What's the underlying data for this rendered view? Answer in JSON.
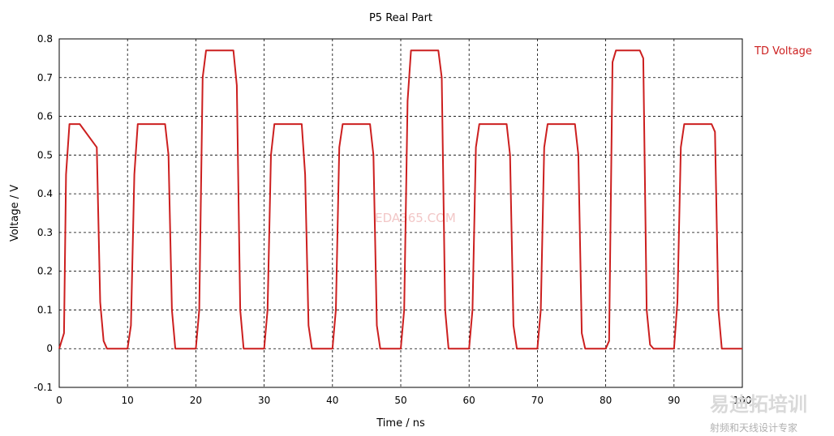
{
  "chart_data": {
    "type": "line",
    "title": "P5 Real Part",
    "xlabel": "Time / ns",
    "ylabel": "Voltage / V",
    "xlim": [
      0,
      100
    ],
    "ylim": [
      -0.1,
      0.8
    ],
    "x_ticks": [
      0,
      10,
      20,
      30,
      40,
      50,
      60,
      70,
      80,
      90,
      100
    ],
    "y_ticks": [
      -0.1,
      0,
      0.1,
      0.2,
      0.3,
      0.4,
      0.5,
      0.6,
      0.7,
      0.8
    ],
    "x_tick_labels": [
      "0",
      "10",
      "20",
      "30",
      "40",
      "50",
      "60",
      "70",
      "80",
      "90",
      "100"
    ],
    "y_tick_labels": [
      "-0.1",
      "0",
      "0.1",
      "0.2",
      "0.3",
      "0.4",
      "0.5",
      "0.6",
      "0.7",
      "0.8"
    ],
    "grid": true,
    "legend_position": "top-right",
    "series": [
      {
        "name": "TD Voltage",
        "color": "#cc1f1f",
        "x": [
          0,
          0.7,
          1.0,
          1.5,
          3.0,
          5.5,
          6.0,
          6.5,
          7.0,
          10.0,
          10.5,
          11.0,
          11.5,
          15.5,
          16.0,
          16.5,
          17.0,
          20.0,
          20.5,
          21.0,
          21.5,
          25.5,
          26.0,
          26.5,
          27.0,
          30.0,
          30.5,
          31.0,
          31.5,
          35.5,
          36.0,
          36.5,
          37.0,
          40.0,
          40.5,
          41.0,
          41.5,
          45.5,
          46.0,
          46.5,
          47.0,
          50.0,
          50.5,
          51.0,
          51.5,
          55.5,
          56.0,
          56.5,
          57.0,
          60.0,
          60.5,
          61.0,
          61.5,
          65.5,
          66.0,
          66.5,
          67.0,
          70.0,
          70.5,
          71.0,
          71.5,
          75.5,
          76.0,
          76.5,
          77.0,
          80.0,
          80.5,
          81.0,
          81.5,
          85.0,
          85.5,
          86.0,
          86.5,
          87.0,
          90.0,
          90.5,
          91.0,
          91.5,
          95.5,
          96.0,
          96.5,
          97.0,
          100.0
        ],
        "values": [
          0,
          0.04,
          0.45,
          0.58,
          0.58,
          0.52,
          0.12,
          0.02,
          0,
          0,
          0.06,
          0.45,
          0.58,
          0.58,
          0.5,
          0.1,
          0,
          0,
          0.1,
          0.7,
          0.77,
          0.77,
          0.68,
          0.1,
          0,
          0,
          0.1,
          0.5,
          0.58,
          0.58,
          0.45,
          0.06,
          0,
          0,
          0.1,
          0.52,
          0.58,
          0.58,
          0.5,
          0.06,
          0,
          0,
          0.1,
          0.64,
          0.77,
          0.77,
          0.7,
          0.1,
          0,
          0,
          0.1,
          0.52,
          0.58,
          0.58,
          0.5,
          0.06,
          0,
          0,
          0.1,
          0.52,
          0.58,
          0.58,
          0.5,
          0.04,
          0,
          0,
          0.02,
          0.74,
          0.77,
          0.77,
          0.75,
          0.1,
          0.01,
          0,
          0,
          0.12,
          0.52,
          0.58,
          0.58,
          0.56,
          0.1,
          0,
          0
        ]
      }
    ]
  },
  "watermark": "EDA365.COM",
  "logo": {
    "main": "易迪拓培训",
    "sub": "射频和天线设计专家"
  }
}
